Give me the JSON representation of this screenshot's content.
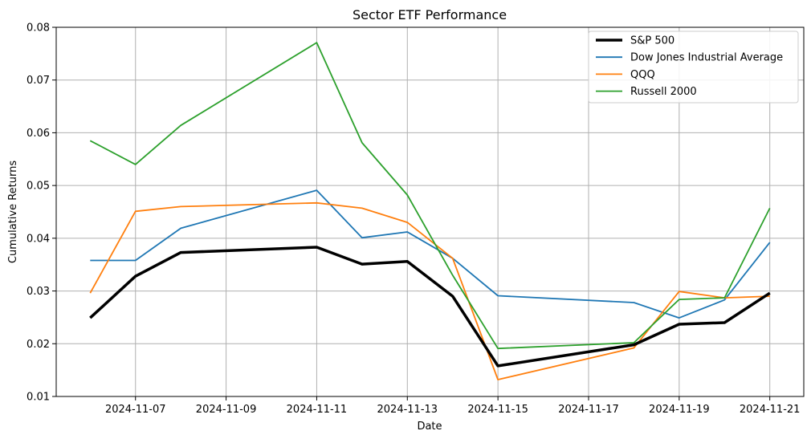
{
  "chart_data": {
    "type": "line",
    "title": "Sector ETF Performance",
    "xlabel": "Date",
    "ylabel": "Cumulative Returns",
    "x": [
      "2024-11-06",
      "2024-11-07",
      "2024-11-08",
      "2024-11-11",
      "2024-11-12",
      "2024-11-13",
      "2024-11-14",
      "2024-11-15",
      "2024-11-18",
      "2024-11-19",
      "2024-11-20",
      "2024-11-21"
    ],
    "xlim": [
      "2024-11-05T06:00",
      "2024-11-21T18:00"
    ],
    "ylim": [
      0.01,
      0.08
    ],
    "xticks": [
      "2024-11-07",
      "2024-11-09",
      "2024-11-11",
      "2024-11-13",
      "2024-11-15",
      "2024-11-17",
      "2024-11-19",
      "2024-11-21"
    ],
    "yticks": [
      0.01,
      0.02,
      0.03,
      0.04,
      0.05,
      0.06,
      0.07,
      0.08
    ],
    "ytick_labels": [
      "0.01",
      "0.02",
      "0.03",
      "0.04",
      "0.05",
      "0.06",
      "0.07",
      "0.08"
    ],
    "grid": true,
    "legend_position": "top-right",
    "series": [
      {
        "name": "S&P 500",
        "color": "#000000",
        "linewidth": 3.5,
        "values": [
          0.0249,
          0.0328,
          0.0373,
          0.0383,
          0.0351,
          0.0356,
          0.029,
          0.0158,
          0.0198,
          0.0237,
          0.024,
          0.0296
        ]
      },
      {
        "name": "Dow Jones Industrial Average",
        "color": "#1f77b4",
        "linewidth": 1.8,
        "values": [
          0.0358,
          0.0358,
          0.0419,
          0.0491,
          0.0401,
          0.0412,
          0.0362,
          0.0291,
          0.0278,
          0.0249,
          0.0283,
          0.0392
        ]
      },
      {
        "name": "QQQ",
        "color": "#ff7f0e",
        "linewidth": 1.8,
        "values": [
          0.0296,
          0.0451,
          0.046,
          0.0467,
          0.0457,
          0.043,
          0.0362,
          0.0132,
          0.0192,
          0.0299,
          0.0287,
          0.029
        ]
      },
      {
        "name": "Russell 2000",
        "color": "#2ca02c",
        "linewidth": 1.8,
        "values": [
          0.0585,
          0.054,
          0.0614,
          0.0771,
          0.0581,
          0.0482,
          0.033,
          0.0191,
          0.0202,
          0.0284,
          0.0287,
          0.0457
        ]
      }
    ]
  }
}
